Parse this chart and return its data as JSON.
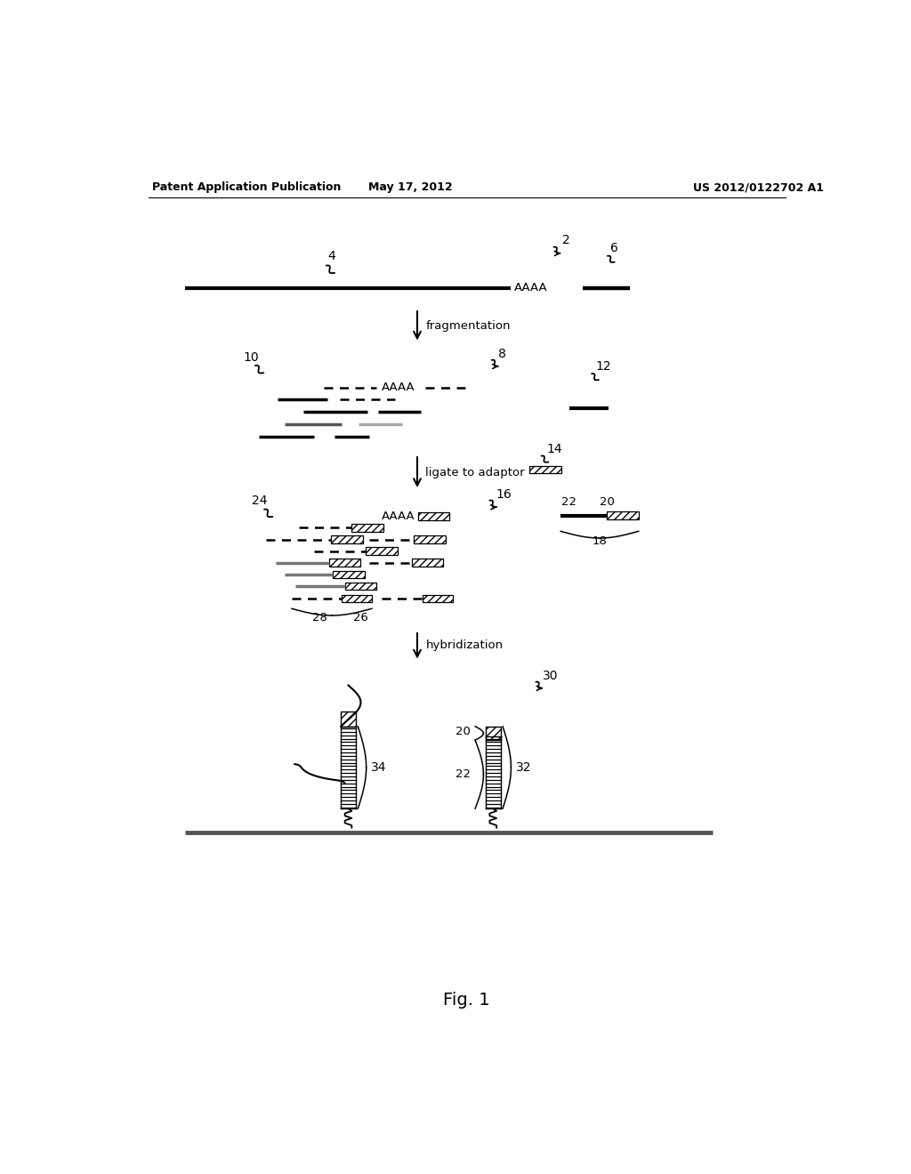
{
  "header_left": "Patent Application Publication",
  "header_center": "May 17, 2012",
  "header_right": "US 2012/0122702 A1",
  "fig_label": "Fig. 1",
  "bg_color": "#ffffff"
}
